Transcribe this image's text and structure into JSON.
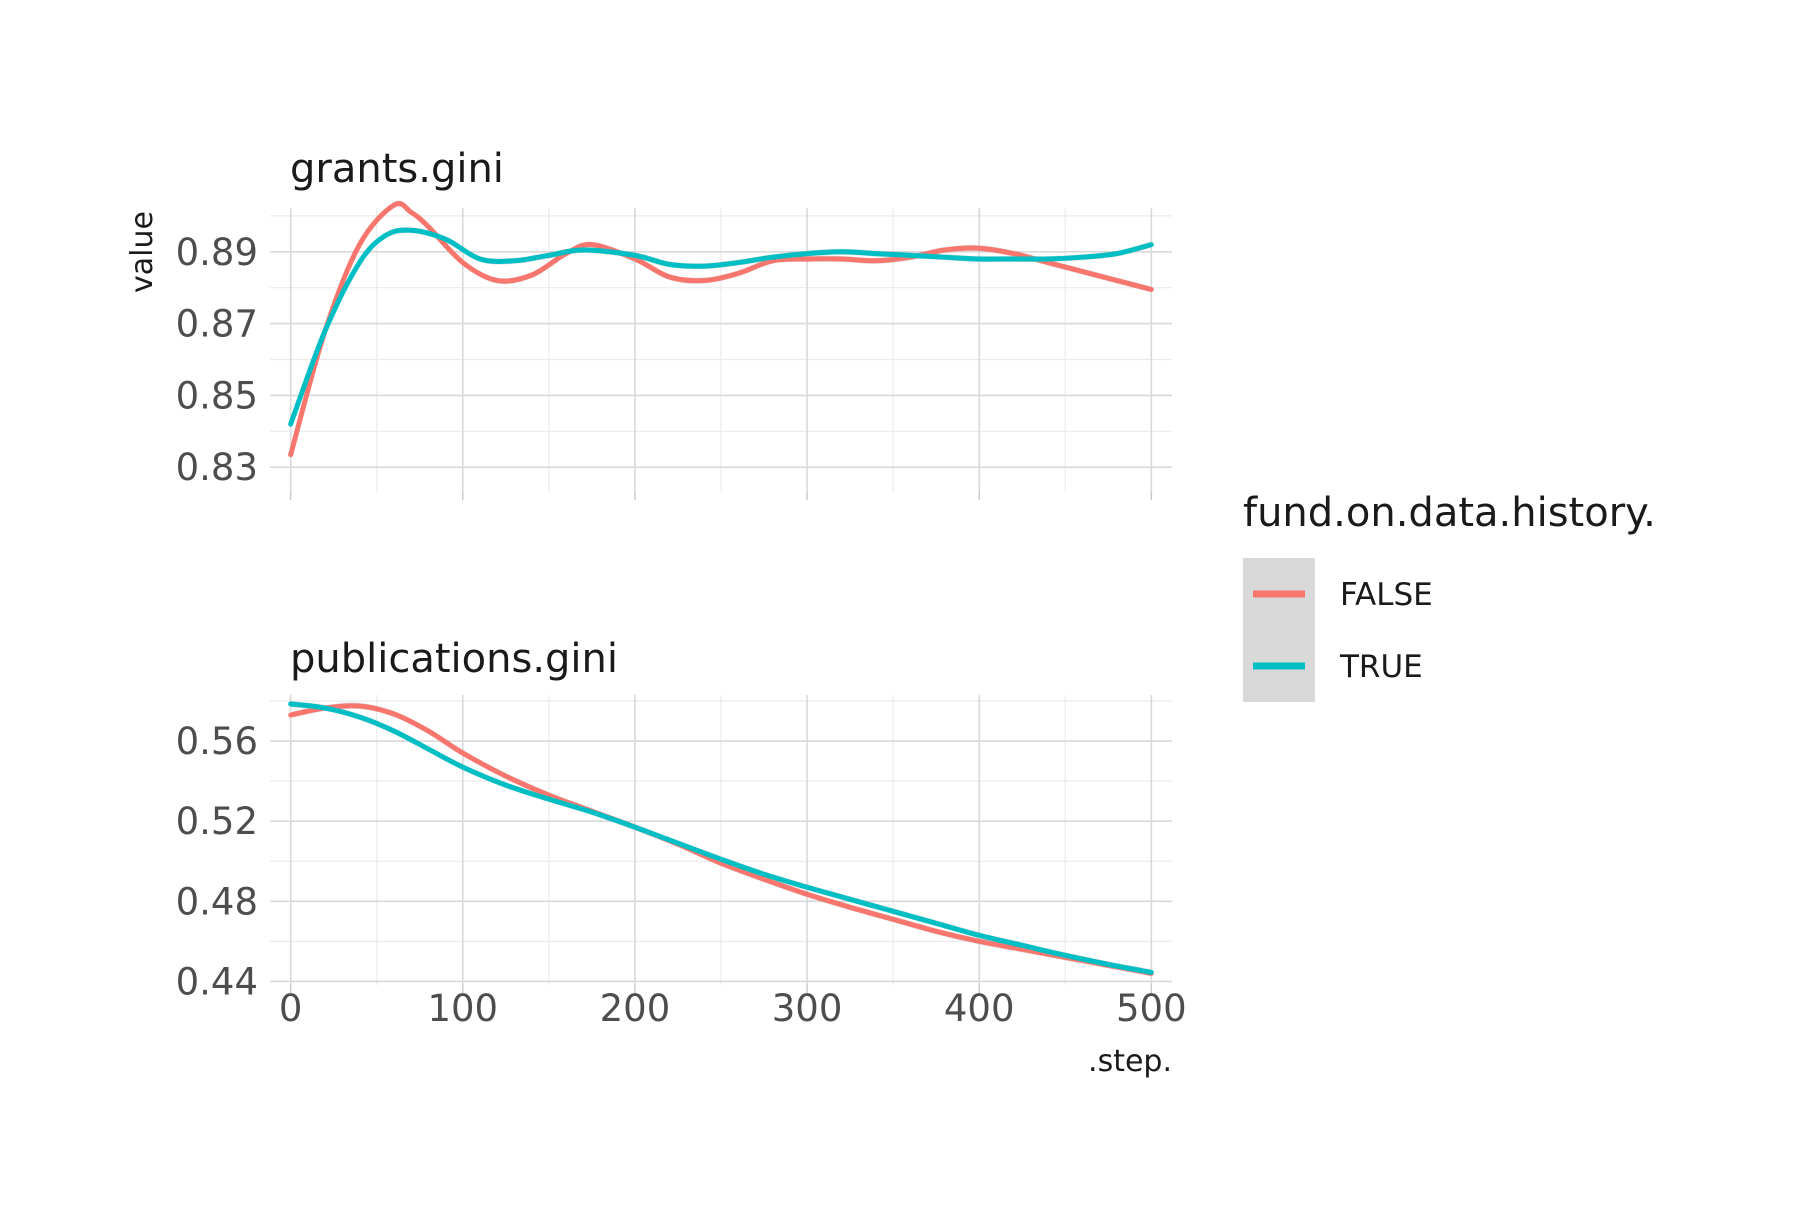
{
  "chart_data": {
    "type": "line",
    "xlabel": ".step.",
    "ylabel": "value",
    "legend": {
      "title": "fund.on.data.history.",
      "entries": [
        {
          "label": "FALSE",
          "color": "#F8766D"
        },
        {
          "label": "TRUE",
          "color": "#00BFC4"
        }
      ],
      "placement": "right"
    },
    "grid": true,
    "x_ticks": [
      0,
      100,
      200,
      300,
      400,
      500
    ],
    "xlim": [
      -12,
      512
    ],
    "panels": [
      {
        "title": "grants.gini",
        "ylim": [
          0.8231,
          0.9022
        ],
        "y_ticks": [
          0.83,
          0.85,
          0.87,
          0.89
        ],
        "y_tick_labels": [
          "0.83",
          "0.85",
          "0.87",
          "0.89"
        ],
        "series": [
          {
            "name": "FALSE",
            "color": "#F8766D",
            "x": [
              0,
              20,
              40,
              60,
              70,
              80,
              100,
              120,
              140,
              160,
              175,
              200,
              220,
              240,
              260,
              280,
              300,
              320,
              340,
              360,
              380,
              400,
              420,
              440,
              460,
              480,
              500
            ],
            "y": [
              0.8335,
              0.868,
              0.892,
              0.903,
              0.901,
              0.897,
              0.887,
              0.882,
              0.8835,
              0.8895,
              0.892,
              0.888,
              0.883,
              0.882,
              0.884,
              0.8875,
              0.888,
              0.888,
              0.8875,
              0.8885,
              0.8905,
              0.891,
              0.8895,
              0.887,
              0.8845,
              0.882,
              0.8795
            ]
          },
          {
            "name": "TRUE",
            "color": "#00BFC4",
            "x": [
              0,
              20,
              40,
              55,
              70,
              90,
              110,
              130,
              150,
              170,
              200,
              220,
              240,
              260,
              280,
              300,
              320,
              340,
              360,
              380,
              400,
              420,
              440,
              460,
              480,
              500
            ],
            "y": [
              0.842,
              0.868,
              0.887,
              0.8945,
              0.896,
              0.8935,
              0.888,
              0.8875,
              0.889,
              0.8905,
              0.889,
              0.8865,
              0.886,
              0.887,
              0.8885,
              0.8895,
              0.89,
              0.8895,
              0.889,
              0.8885,
              0.888,
              0.888,
              0.888,
              0.8885,
              0.8895,
              0.892
            ]
          }
        ]
      },
      {
        "title": "publications.gini",
        "ylim": [
          0.4382,
          0.583
        ],
        "y_ticks": [
          0.44,
          0.48,
          0.52,
          0.56
        ],
        "y_tick_labels": [
          "0.44",
          "0.48",
          "0.52",
          "0.56"
        ],
        "series": [
          {
            "name": "FALSE",
            "color": "#F8766D",
            "x": [
              0,
              20,
              40,
              60,
              80,
              100,
              125,
              150,
              175,
              200,
              225,
              250,
              275,
              300,
              325,
              350,
              375,
              400,
              425,
              450,
              475,
              500
            ],
            "y": [
              0.573,
              0.5765,
              0.5775,
              0.5735,
              0.565,
              0.554,
              0.5425,
              0.533,
              0.525,
              0.517,
              0.5085,
              0.499,
              0.491,
              0.4835,
              0.477,
              0.471,
              0.465,
              0.46,
              0.456,
              0.452,
              0.448,
              0.444
            ]
          },
          {
            "name": "TRUE",
            "color": "#00BFC4",
            "x": [
              0,
              20,
              40,
              60,
              80,
              100,
              125,
              150,
              175,
              200,
              225,
              250,
              275,
              300,
              325,
              350,
              375,
              400,
              425,
              450,
              475,
              500
            ],
            "y": [
              0.5785,
              0.5765,
              0.572,
              0.565,
              0.556,
              0.547,
              0.538,
              0.531,
              0.5245,
              0.517,
              0.509,
              0.501,
              0.4935,
              0.487,
              0.481,
              0.475,
              0.469,
              0.463,
              0.458,
              0.453,
              0.4485,
              0.4445
            ]
          }
        ]
      }
    ]
  }
}
